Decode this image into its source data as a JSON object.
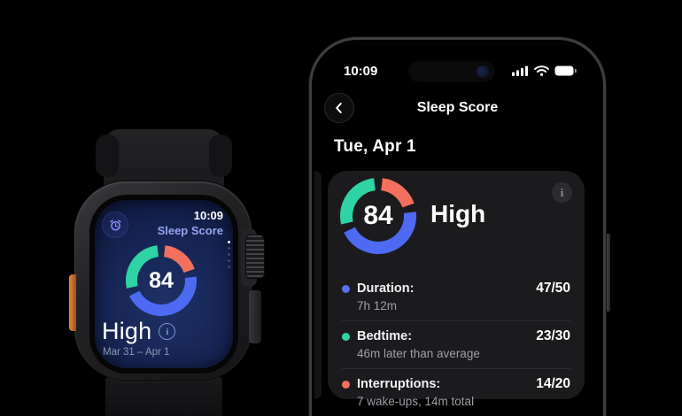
{
  "watch": {
    "status_time": "10:09",
    "app_title": "Sleep Score",
    "score": "84",
    "rating": "High",
    "date_range": "Mar 31 – Apr 1",
    "info_glyph": "i"
  },
  "phone": {
    "status_bar": {
      "time": "10:09"
    },
    "nav": {
      "title": "Sleep Score"
    },
    "date_heading": "Tue, Apr 1",
    "card": {
      "score": "84",
      "rating": "High",
      "info_glyph": "i",
      "metrics": [
        {
          "label": "Duration:",
          "value": "47/50",
          "detail": "7h 12m",
          "color": "#5a6ff0"
        },
        {
          "label": "Bedtime:",
          "value": "23/30",
          "detail": "46m later than average",
          "color": "#2fd3a5"
        },
        {
          "label": "Interruptions:",
          "value": "14/20",
          "detail": "7 wake-ups, 14m total",
          "color": "#f3705f"
        }
      ]
    }
  },
  "chart_data": {
    "type": "pie",
    "title": "Sleep Score ring",
    "center_label": "84",
    "rating": "High",
    "total_score": "84/100",
    "gap_deg": 13,
    "segments_clockwise_from_top": [
      {
        "name": "Interruptions",
        "color": "#f3705f",
        "max_points": 20,
        "score": 14
      },
      {
        "name": "Duration",
        "color": "#4e6af2",
        "max_points": 50,
        "score": 47
      },
      {
        "name": "Bedtime",
        "color": "#2fd3a5",
        "max_points": 30,
        "score": 23
      }
    ]
  },
  "colors": {
    "background": "#000000",
    "card": "#1b1b1d",
    "watch_accent": "#93a5ef",
    "duration_blue": "#5a6ff0",
    "bedtime_teal": "#2fd3a5",
    "interruptions_red": "#f3705f"
  }
}
